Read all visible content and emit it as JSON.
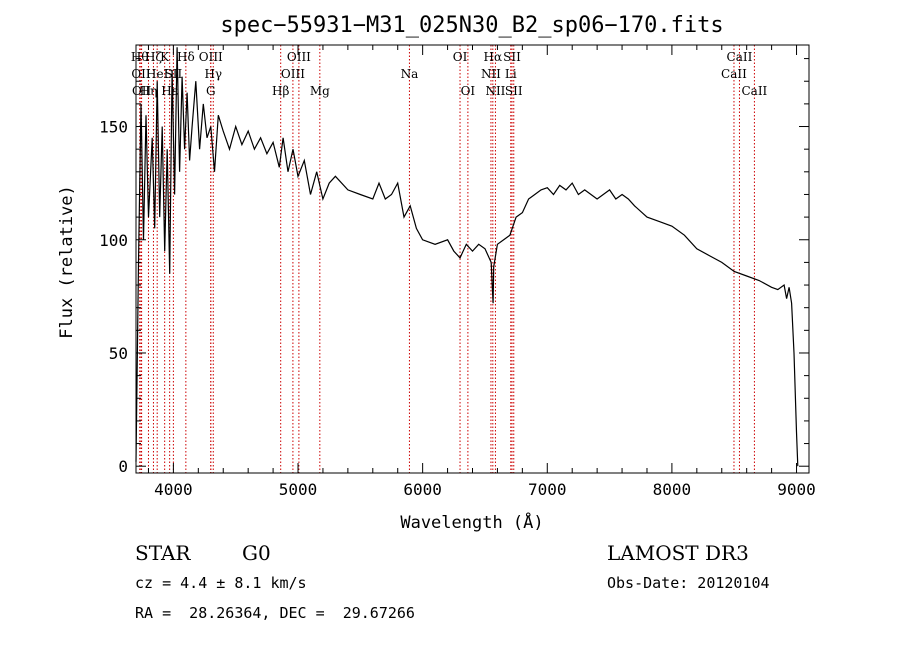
{
  "chart_data": {
    "type": "line",
    "title": "spec−55931−M31_025N30_B2_sp06−170.fits",
    "xlabel": "Wavelength (Å)",
    "ylabel": "Flux (relative)",
    "xlim": [
      3700,
      9100
    ],
    "ylim": [
      -3,
      186
    ],
    "xticks": [
      4000,
      5000,
      6000,
      7000,
      8000,
      9000
    ],
    "yticks": [
      0,
      50,
      100,
      150
    ],
    "series": [
      {
        "name": "flux",
        "x": [
          3700,
          3720,
          3740,
          3760,
          3780,
          3800,
          3830,
          3850,
          3870,
          3890,
          3910,
          3930,
          3950,
          3970,
          3990,
          4010,
          4030,
          4050,
          4070,
          4090,
          4110,
          4130,
          4150,
          4180,
          4210,
          4240,
          4270,
          4300,
          4330,
          4360,
          4400,
          4450,
          4500,
          4550,
          4600,
          4650,
          4700,
          4750,
          4800,
          4850,
          4880,
          4920,
          4960,
          5000,
          5050,
          5100,
          5150,
          5200,
          5250,
          5300,
          5400,
          5500,
          5600,
          5650,
          5700,
          5750,
          5800,
          5850,
          5900,
          5950,
          6000,
          6100,
          6200,
          6250,
          6300,
          6350,
          6400,
          6450,
          6500,
          6550,
          6560,
          6565,
          6570,
          6600,
          6650,
          6700,
          6750,
          6800,
          6850,
          6900,
          6950,
          7000,
          7050,
          7100,
          7150,
          7200,
          7250,
          7300,
          7400,
          7500,
          7550,
          7600,
          7650,
          7700,
          7800,
          7900,
          8000,
          8100,
          8200,
          8300,
          8400,
          8500,
          8600,
          8700,
          8800,
          8850,
          8900,
          8920,
          8940,
          8960,
          8980,
          9000,
          9010
        ],
        "y": [
          2,
          90,
          160,
          100,
          155,
          110,
          145,
          105,
          170,
          110,
          150,
          95,
          140,
          85,
          175,
          120,
          185,
          130,
          172,
          140,
          165,
          135,
          150,
          170,
          140,
          160,
          145,
          150,
          130,
          155,
          148,
          140,
          150,
          142,
          148,
          140,
          145,
          138,
          143,
          132,
          145,
          130,
          140,
          128,
          135,
          120,
          130,
          118,
          125,
          128,
          122,
          120,
          118,
          125,
          118,
          120,
          125,
          110,
          115,
          105,
          100,
          98,
          100,
          95,
          92,
          98,
          95,
          98,
          96,
          90,
          78,
          72,
          88,
          98,
          100,
          102,
          110,
          112,
          118,
          120,
          122,
          123,
          120,
          124,
          122,
          125,
          120,
          122,
          118,
          122,
          118,
          120,
          118,
          115,
          110,
          108,
          106,
          102,
          96,
          93,
          90,
          86,
          84,
          82,
          79,
          78,
          80,
          74,
          79,
          72,
          50,
          15,
          0
        ]
      }
    ],
    "lines": [
      {
        "x": 3730,
        "label": "Hθ",
        "row": 0
      },
      {
        "x": 3740,
        "label": "OII",
        "row": 1
      },
      {
        "x": 3745,
        "label": "OII",
        "row": 2
      },
      {
        "x": 3800,
        "label": "Hη",
        "row": 2
      },
      {
        "x": 3840,
        "label": "Hζ",
        "row": 0
      },
      {
        "x": 3870,
        "label": "HeI",
        "row": 1
      },
      {
        "x": 3930,
        "label": "K",
        "row": 0
      },
      {
        "x": 3970,
        "label": "Hε",
        "row": 2
      },
      {
        "x": 4000,
        "label": "SII",
        "row": 1
      },
      {
        "x": 4100,
        "label": "Hδ",
        "row": 0
      },
      {
        "x": 4300,
        "label": "OIII",
        "row": 0
      },
      {
        "x": 4320,
        "label": "Hγ",
        "row": 1
      },
      {
        "x": 4300,
        "label": "G",
        "row": 2
      },
      {
        "x": 4861,
        "label": "Hβ",
        "row": 2
      },
      {
        "x": 4959,
        "label": "OIII",
        "row": 1
      },
      {
        "x": 5007,
        "label": "OIII",
        "row": 0
      },
      {
        "x": 5175,
        "label": "Mg",
        "row": 2
      },
      {
        "x": 5894,
        "label": "Na",
        "row": 1
      },
      {
        "x": 6300,
        "label": "OI",
        "row": 0
      },
      {
        "x": 6363,
        "label": "OI",
        "row": 2
      },
      {
        "x": 6548,
        "label": "NII",
        "row": 1
      },
      {
        "x": 6563,
        "label": "Hα",
        "row": 0
      },
      {
        "x": 6584,
        "label": "NII",
        "row": 2
      },
      {
        "x": 6707,
        "label": "Li",
        "row": 1
      },
      {
        "x": 6717,
        "label": "SII",
        "row": 0
      },
      {
        "x": 6731,
        "label": "SII",
        "row": 2
      },
      {
        "x": 8498,
        "label": "CaII",
        "row": 1
      },
      {
        "x": 8542,
        "label": "CaII",
        "row": 0
      },
      {
        "x": 8662,
        "label": "CaII",
        "row": 2
      }
    ]
  },
  "info": {
    "class": "STAR",
    "subclass": "G0",
    "survey": "LAMOST DR3",
    "cz": "cz = 4.4 ± 8.1 km/s",
    "obs_date": "Obs-Date: 20120104",
    "coords": "RA =  28.26364, DEC =  29.67266"
  },
  "colors": {
    "line": "#000000",
    "marker": "#cc0000"
  }
}
